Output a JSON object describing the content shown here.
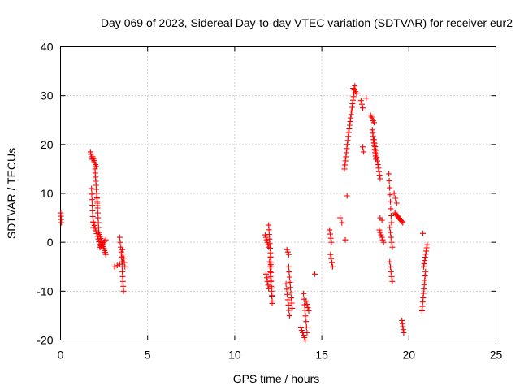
{
  "chart_data": {
    "type": "scatter",
    "title": "Day 069 of 2023, Sidereal Day-to-day VTEC variation (SDTVAR) for receiver eur2",
    "xlabel": "GPS time / hours",
    "ylabel": "SDTVAR / TECUs",
    "xlim": [
      0,
      25
    ],
    "ylim": [
      -20,
      40
    ],
    "xticks": [
      0,
      5,
      10,
      15,
      20,
      25
    ],
    "yticks": [
      -20,
      -10,
      0,
      10,
      20,
      30,
      40
    ],
    "grid": true,
    "marker": "plus",
    "color": "#ff0000",
    "segments": [
      {
        "x0": 0.02,
        "x1": 0.05,
        "y0": 6.0,
        "y1": 4.0,
        "n": 4
      },
      {
        "x0": 1.72,
        "x1": 1.8,
        "y0": 18.5,
        "y1": 17.0,
        "n": 4
      },
      {
        "x0": 1.78,
        "x1": 1.88,
        "y0": 11.0,
        "y1": 3.0,
        "n": 8
      },
      {
        "x0": 1.85,
        "x1": 2.05,
        "y0": 17.5,
        "y1": 15.5,
        "n": 6
      },
      {
        "x0": 1.98,
        "x1": 2.12,
        "y0": 15.0,
        "y1": 7.5,
        "n": 10
      },
      {
        "x0": 2.1,
        "x1": 2.2,
        "y0": 9.0,
        "y1": 2.0,
        "n": 8
      },
      {
        "x0": 1.9,
        "x1": 2.3,
        "y0": 4.0,
        "y1": -1.0,
        "n": 10
      },
      {
        "x0": 2.2,
        "x1": 2.6,
        "y0": 2.0,
        "y1": -2.5,
        "n": 12
      },
      {
        "x0": 2.25,
        "x1": 2.6,
        "y0": -1.0,
        "y1": 0.5,
        "n": 6
      },
      {
        "x0": 3.1,
        "x1": 3.4,
        "y0": -5.0,
        "y1": -4.5,
        "n": 3
      },
      {
        "x0": 3.4,
        "x1": 3.55,
        "y0": 1.0,
        "y1": -4.0,
        "n": 6
      },
      {
        "x0": 3.5,
        "x1": 3.62,
        "y0": -3.0,
        "y1": -10.0,
        "n": 8
      },
      {
        "x0": 3.55,
        "x1": 3.7,
        "y0": -1.5,
        "y1": -5.0,
        "n": 5
      },
      {
        "x0": 11.75,
        "x1": 11.95,
        "y0": 1.5,
        "y1": -1.0,
        "n": 6
      },
      {
        "x0": 11.8,
        "x1": 11.95,
        "y0": -6.5,
        "y1": -9.5,
        "n": 5
      },
      {
        "x0": 11.95,
        "x1": 12.1,
        "y0": 3.5,
        "y1": -5.0,
        "n": 10
      },
      {
        "x0": 12.0,
        "x1": 12.15,
        "y0": -4.0,
        "y1": -12.0,
        "n": 9
      },
      {
        "x0": 12.05,
        "x1": 12.15,
        "y0": -3.0,
        "y1": -12.5,
        "n": 7
      },
      {
        "x0": 12.95,
        "x1": 13.15,
        "y0": -8.5,
        "y1": -15.0,
        "n": 7
      },
      {
        "x0": 13.0,
        "x1": 13.1,
        "y0": -1.5,
        "y1": -2.5,
        "n": 3
      },
      {
        "x0": 13.1,
        "x1": 13.3,
        "y0": -5.0,
        "y1": -13.5,
        "n": 9
      },
      {
        "x0": 13.8,
        "x1": 14.05,
        "y0": -17.5,
        "y1": -20.0,
        "n": 6
      },
      {
        "x0": 13.95,
        "x1": 14.15,
        "y0": -10.5,
        "y1": -18.5,
        "n": 8
      },
      {
        "x0": 14.1,
        "x1": 14.25,
        "y0": -12.0,
        "y1": -14.0,
        "n": 4
      },
      {
        "x0": 14.6,
        "x1": 14.62,
        "y0": -6.5,
        "y1": -6.5,
        "n": 1
      },
      {
        "x0": 15.45,
        "x1": 15.55,
        "y0": 2.5,
        "y1": 0.0,
        "n": 4
      },
      {
        "x0": 15.5,
        "x1": 15.62,
        "y0": -2.5,
        "y1": -5.0,
        "n": 4
      },
      {
        "x0": 16.05,
        "x1": 16.15,
        "y0": 5.0,
        "y1": 4.0,
        "n": 2
      },
      {
        "x0": 16.35,
        "x1": 16.38,
        "y0": 0.5,
        "y1": 0.5,
        "n": 1
      },
      {
        "x0": 16.45,
        "x1": 16.48,
        "y0": 9.5,
        "y1": 9.5,
        "n": 1
      },
      {
        "x0": 16.3,
        "x1": 16.55,
        "y0": 15.0,
        "y1": 22.5,
        "n": 10
      },
      {
        "x0": 16.55,
        "x1": 16.9,
        "y0": 22.5,
        "y1": 32.0,
        "n": 14
      },
      {
        "x0": 16.8,
        "x1": 17.0,
        "y0": 31.5,
        "y1": 30.5,
        "n": 4
      },
      {
        "x0": 17.25,
        "x1": 17.35,
        "y0": 29.0,
        "y1": 27.5,
        "n": 3
      },
      {
        "x0": 17.35,
        "x1": 17.4,
        "y0": 19.5,
        "y1": 18.5,
        "n": 2
      },
      {
        "x0": 17.55,
        "x1": 17.6,
        "y0": 29.5,
        "y1": 29.5,
        "n": 1
      },
      {
        "x0": 17.8,
        "x1": 18.0,
        "y0": 26.0,
        "y1": 24.5,
        "n": 5
      },
      {
        "x0": 17.9,
        "x1": 18.1,
        "y0": 23.0,
        "y1": 17.0,
        "n": 10
      },
      {
        "x0": 18.0,
        "x1": 18.35,
        "y0": 21.0,
        "y1": 13.0,
        "n": 12
      },
      {
        "x0": 18.35,
        "x1": 18.45,
        "y0": 5.0,
        "y1": 4.5,
        "n": 2
      },
      {
        "x0": 18.3,
        "x1": 18.55,
        "y0": 2.5,
        "y1": 0.0,
        "n": 6
      },
      {
        "x0": 18.85,
        "x1": 19.0,
        "y0": 14.0,
        "y1": 4.0,
        "n": 8
      },
      {
        "x0": 18.9,
        "x1": 19.05,
        "y0": 3.0,
        "y1": -1.0,
        "n": 5
      },
      {
        "x0": 18.9,
        "x1": 19.05,
        "y0": -4.0,
        "y1": -8.0,
        "n": 5
      },
      {
        "x0": 19.15,
        "x1": 19.3,
        "y0": 10.0,
        "y1": 8.0,
        "n": 3
      },
      {
        "x0": 19.2,
        "x1": 19.65,
        "y0": 6.0,
        "y1": 4.0,
        "n": 10
      },
      {
        "x0": 19.6,
        "x1": 19.7,
        "y0": -16.0,
        "y1": -18.5,
        "n": 5
      },
      {
        "x0": 20.8,
        "x1": 20.85,
        "y0": 1.8,
        "y1": 1.8,
        "n": 1
      },
      {
        "x0": 20.75,
        "x1": 20.95,
        "y0": -14.0,
        "y1": -6.0,
        "n": 10
      },
      {
        "x0": 20.85,
        "x1": 21.05,
        "y0": -5.0,
        "y1": -0.5,
        "n": 8
      }
    ]
  }
}
